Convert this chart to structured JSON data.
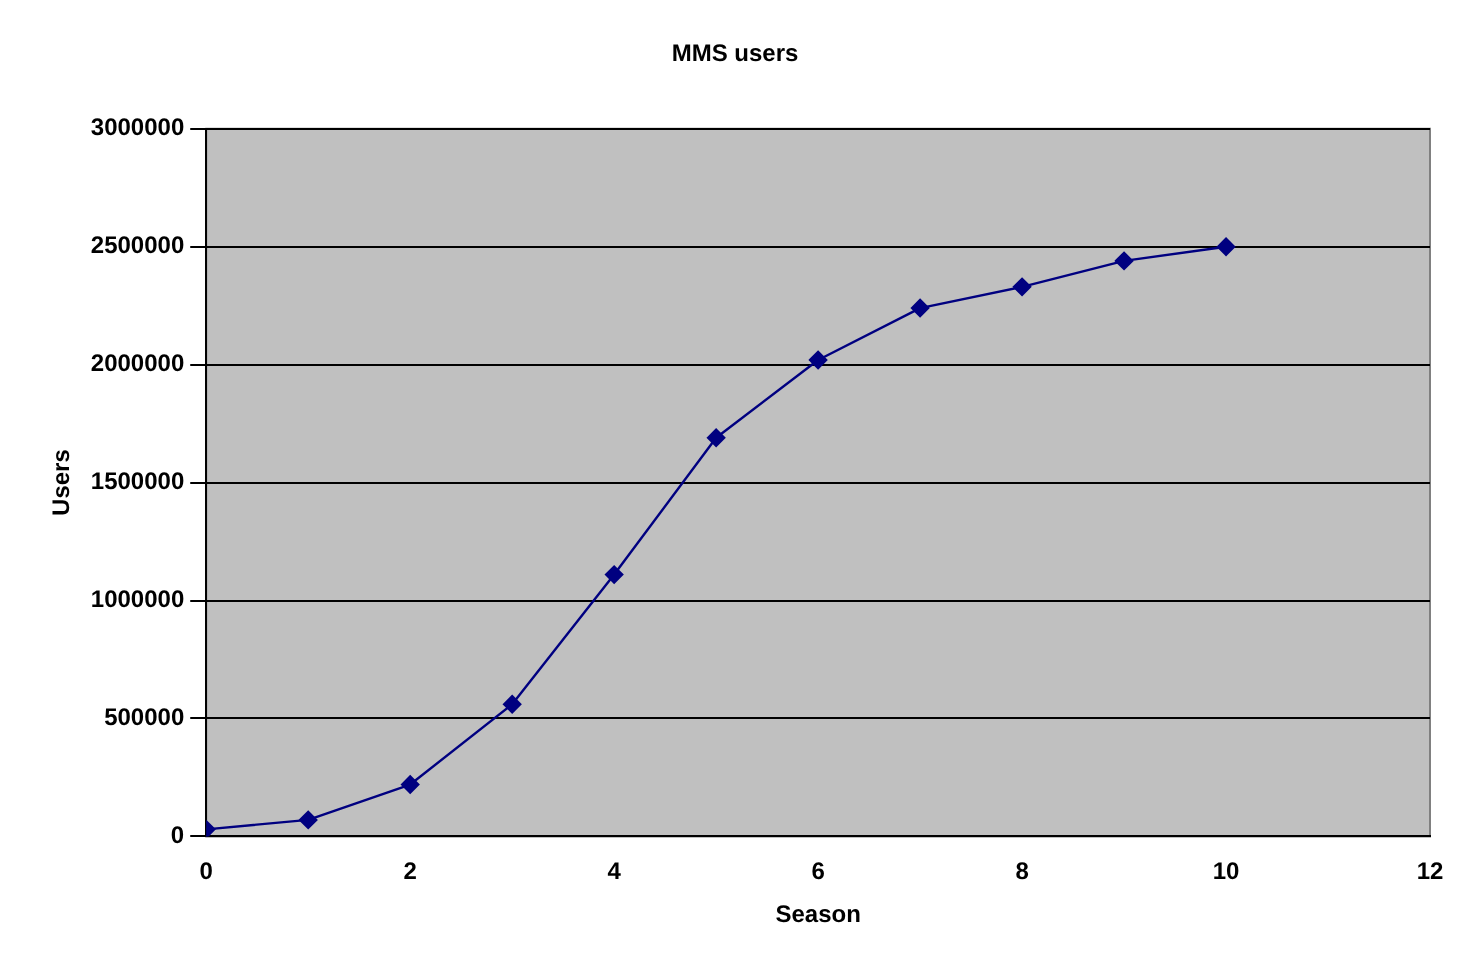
{
  "chart_data": {
    "type": "line",
    "title": "MMS users",
    "xlabel": "Season",
    "ylabel": "Users",
    "x": [
      0,
      1,
      2,
      3,
      4,
      5,
      6,
      7,
      8,
      9,
      10
    ],
    "series": [
      {
        "color": "#000080",
        "values": [
          30000,
          70000,
          220000,
          560000,
          1110000,
          1690000,
          2020000,
          2240000,
          2330000,
          2440000,
          2500000
        ]
      }
    ],
    "xlim": [
      0,
      12
    ],
    "xticks": [
      0,
      2,
      4,
      6,
      8,
      10,
      12
    ],
    "ylim": [
      0,
      3000000
    ],
    "yticks": [
      0,
      500000,
      1000000,
      1500000,
      2000000,
      2500000,
      3000000
    ],
    "grid": "y",
    "legend": false,
    "marker": "diamond",
    "line_style": "solid"
  }
}
